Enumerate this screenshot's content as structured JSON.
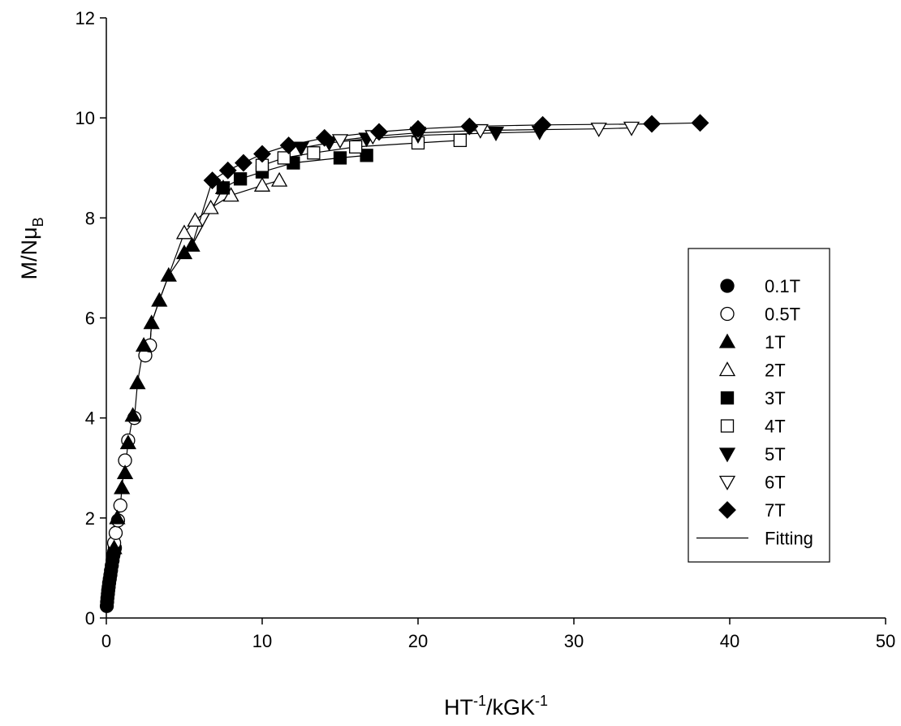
{
  "chart_data": {
    "type": "scatter",
    "title": "",
    "xlabel_main": "HT",
    "xlabel_sup1": "-1",
    "xlabel_mid": "/kGK",
    "xlabel_sup2": "-1",
    "ylabel_main": "M/Nμ",
    "ylabel_sub": "B",
    "xlim": [
      0,
      50
    ],
    "ylim": [
      0,
      12
    ],
    "x_ticks": [
      "0",
      "10",
      "20",
      "30",
      "40",
      "50"
    ],
    "y_ticks": [
      "0",
      "2",
      "4",
      "6",
      "8",
      "10",
      "12"
    ],
    "grid": false,
    "legend_position": "right",
    "series": [
      {
        "name": "0.1T",
        "marker": "circle-filled",
        "x": [
          0.03,
          0.05,
          0.07,
          0.1,
          0.12,
          0.15,
          0.18,
          0.22,
          0.26,
          0.3,
          0.35,
          0.4,
          0.45,
          0.5,
          0.55
        ],
        "y": [
          0.24,
          0.32,
          0.4,
          0.48,
          0.55,
          0.62,
          0.7,
          0.78,
          0.86,
          0.95,
          1.05,
          1.15,
          1.25,
          1.32,
          1.4
        ]
      },
      {
        "name": "0.5T",
        "marker": "circle-open",
        "x": [
          0.5,
          0.6,
          0.75,
          0.9,
          1.2,
          1.4,
          1.8,
          2.5,
          2.8
        ],
        "y": [
          1.5,
          1.7,
          1.95,
          2.25,
          3.15,
          3.55,
          4.0,
          5.25,
          5.45
        ]
      },
      {
        "name": "1T",
        "marker": "triangle-filled",
        "x": [
          0.5,
          0.7,
          1.0,
          1.2,
          1.4,
          1.7,
          2.0,
          2.4,
          2.9,
          3.4,
          4.0,
          5.0,
          5.5,
          7.5
        ],
        "y": [
          1.4,
          2.0,
          2.6,
          2.9,
          3.5,
          4.05,
          4.7,
          5.45,
          5.9,
          6.35,
          6.85,
          7.3,
          7.45,
          8.6
        ]
      },
      {
        "name": "2T",
        "marker": "triangle-open",
        "x": [
          5.0,
          5.7,
          6.7,
          8.0,
          10.0,
          11.1
        ],
        "y": [
          7.7,
          7.95,
          8.2,
          8.45,
          8.65,
          8.75
        ]
      },
      {
        "name": "3T",
        "marker": "square-filled",
        "x": [
          7.5,
          8.6,
          10.0,
          12.0,
          15.0,
          16.7
        ],
        "y": [
          8.6,
          8.78,
          8.92,
          9.1,
          9.2,
          9.25
        ]
      },
      {
        "name": "4T",
        "marker": "square-open",
        "x": [
          10.0,
          11.4,
          13.3,
          16.0,
          20.0,
          22.7
        ],
        "y": [
          9.05,
          9.2,
          9.3,
          9.42,
          9.5,
          9.55
        ]
      },
      {
        "name": "5T",
        "marker": "triangle-down-filled",
        "x": [
          12.5,
          14.3,
          16.7,
          20.0,
          25.0,
          27.8
        ],
        "y": [
          9.4,
          9.5,
          9.58,
          9.65,
          9.7,
          9.72
        ]
      },
      {
        "name": "6T",
        "marker": "triangle-down-open",
        "x": [
          15.0,
          17.1,
          20.0,
          24.0,
          31.6,
          33.7
        ],
        "y": [
          9.55,
          9.63,
          9.7,
          9.75,
          9.78,
          9.8
        ]
      },
      {
        "name": "7T",
        "marker": "diamond-filled",
        "x": [
          6.8,
          7.8,
          8.8,
          10.0,
          11.7,
          14.0,
          17.5,
          20.0,
          23.3,
          28.0,
          35.0,
          38.1
        ],
        "y": [
          8.75,
          8.95,
          9.1,
          9.28,
          9.45,
          9.6,
          9.72,
          9.78,
          9.83,
          9.86,
          9.88,
          9.9
        ]
      },
      {
        "name": "Fitting",
        "marker": "line"
      }
    ]
  }
}
